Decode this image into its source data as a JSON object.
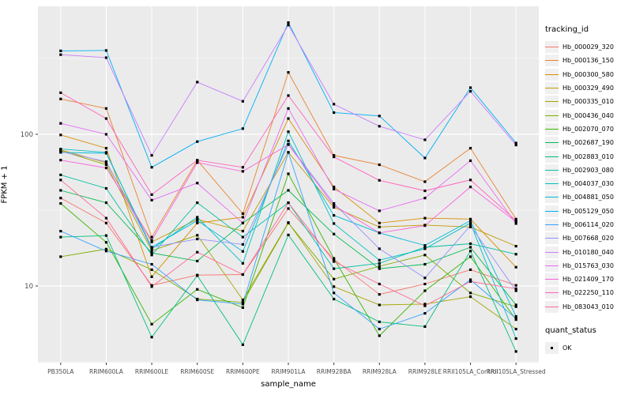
{
  "figure": {
    "background": "#FFFFFF",
    "panel_background": "#EBEBEB",
    "grid_color": "#FFFFFF",
    "tick_label_color": "#4D4D4D",
    "point_color": "#000000"
  },
  "axes": {
    "y_title": "FPKM + 1",
    "x_title": "sample_name",
    "y_tick_labels": [
      "100",
      "10"
    ]
  },
  "legend": {
    "tracking_title": "tracking_id",
    "quant_title": "quant_status",
    "quant_items": [
      {
        "label": "OK",
        "shape": "black-square-point"
      }
    ]
  },
  "chart_data": {
    "type": "line",
    "title": "",
    "xlabel": "sample_name",
    "ylabel": "FPKM + 1",
    "y_scale": "log10",
    "y_ticks": [
      10,
      100
    ],
    "y_minor_gridlines": [
      3.162,
      31.62,
      316.2
    ],
    "ylim_approx": [
      3.1,
      695
    ],
    "grid": "on",
    "legend_position": "right",
    "point_shape": "square",
    "point_color": "#000000",
    "x_categories": [
      "PB350LA",
      "RRIM600LA",
      "RRIM600LE",
      "RRIM600SE",
      "RRIM600PE",
      "RRIM901LA",
      "RRIM928BA",
      "RRIM928LA",
      "RRIM928LE",
      "RRII105LA_Control",
      "RRII105LA_Stressed"
    ],
    "series": [
      {
        "name": "Hb_000029_320",
        "color": "#F8766D",
        "values": [
          38,
          26,
          10.1,
          11.8,
          11.9,
          32.4,
          15,
          8.8,
          10.3,
          12.8,
          10.1
        ]
      },
      {
        "name": "Hb_000136_150",
        "color": "#EA8331",
        "values": [
          171,
          148,
          21,
          67.4,
          30,
          256,
          72.6,
          63,
          48.7,
          81,
          27.6
        ]
      },
      {
        "name": "Hb_000300_580",
        "color": "#D89000",
        "values": [
          99,
          81,
          11.5,
          26,
          28.4,
          127,
          45,
          26,
          28,
          27.6,
          13.3
        ]
      },
      {
        "name": "Hb_000329_490",
        "color": "#C09B00",
        "values": [
          79,
          65,
          19.5,
          27.5,
          23,
          76,
          33,
          24.5,
          25.2,
          24.5,
          18.3
        ]
      },
      {
        "name": "Hb_000335_010",
        "color": "#A3A500",
        "values": [
          78,
          63,
          17.1,
          21.6,
          8.1,
          26.2,
          9.9,
          7.5,
          7.6,
          8.5,
          5.2
        ]
      },
      {
        "name": "Hb_000436_040",
        "color": "#7CAE00",
        "values": [
          15.6,
          17.5,
          12.8,
          8.2,
          7.8,
          26,
          11.1,
          13.5,
          16,
          9.0,
          7.3
        ]
      },
      {
        "name": "Hb_002070_070",
        "color": "#39B600",
        "values": [
          35,
          19.4,
          5.6,
          9.5,
          7.2,
          54.9,
          15.2,
          4.7,
          9.3,
          15.6,
          6.0
        ]
      },
      {
        "name": "Hb_002687_190",
        "color": "#00BB4E",
        "values": [
          42.7,
          35.4,
          16.5,
          14.6,
          26,
          42.7,
          22,
          13,
          13.9,
          18,
          7.5
        ]
      },
      {
        "name": "Hb_002883_010",
        "color": "#00BF7D",
        "values": [
          21,
          21.5,
          4.6,
          11.7,
          4.1,
          21.7,
          8.2,
          5.8,
          5.4,
          17,
          3.7
        ]
      },
      {
        "name": "Hb_002903_080",
        "color": "#00C1A3",
        "values": [
          54,
          44,
          16,
          35.4,
          21,
          35.4,
          13,
          14.1,
          18,
          19,
          16.2
        ]
      },
      {
        "name": "Hb_004037_030",
        "color": "#00BFC4",
        "values": [
          80,
          76,
          17.5,
          28.4,
          14.1,
          104,
          25.8,
          14.8,
          17.6,
          26,
          4.5
        ]
      },
      {
        "name": "Hb_004881_050",
        "color": "#00BBDA",
        "values": [
          76,
          75,
          18,
          27,
          16.9,
          90.5,
          29.2,
          22.4,
          18.5,
          27,
          6.3
        ]
      },
      {
        "name": "Hb_005129_050",
        "color": "#00B0F6",
        "values": [
          355,
          357,
          60.6,
          89.5,
          109,
          545,
          139,
          132,
          69.8,
          203,
          87.6
        ]
      },
      {
        "name": "Hb_006114_020",
        "color": "#35A2FF",
        "values": [
          23,
          17,
          13.9,
          8.1,
          7.6,
          76,
          9.0,
          5.2,
          6.6,
          11,
          6.1
        ]
      },
      {
        "name": "Hb_007668_020",
        "color": "#9590FF",
        "values": [
          77,
          66,
          18,
          20.4,
          18.8,
          86,
          35,
          17.6,
          11.3,
          25,
          9.3
        ]
      },
      {
        "name": "Hb_010180_040",
        "color": "#C77CFF",
        "values": [
          335,
          320,
          72.6,
          221,
          165,
          525,
          158,
          113,
          92,
          192,
          85
        ]
      },
      {
        "name": "Hb_015763_030",
        "color": "#E76BF3",
        "values": [
          118,
          100,
          36.8,
          47.7,
          26,
          148,
          43.5,
          31.3,
          38,
          67,
          25.8
        ]
      },
      {
        "name": "Hb_021409_170",
        "color": "#FA62DB",
        "values": [
          67.6,
          60,
          20,
          65,
          57,
          85.5,
          34,
          22.4,
          25,
          45,
          26.5
        ]
      },
      {
        "name": "Hb_022250_110",
        "color": "#FF62BC",
        "values": [
          188,
          127,
          40,
          67.4,
          60.6,
          180,
          71,
          49.7,
          42.4,
          50,
          27
        ]
      },
      {
        "name": "Hb_083043_010",
        "color": "#FF6A98",
        "values": [
          50,
          28,
          9.9,
          16.7,
          11.9,
          35.4,
          14.5,
          10.3,
          7.4,
          10.7,
          9.6
        ]
      }
    ]
  }
}
